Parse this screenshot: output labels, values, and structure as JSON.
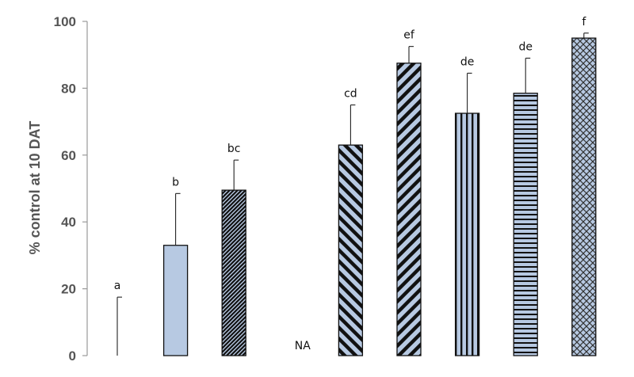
{
  "chart_data": {
    "type": "bar",
    "title": "",
    "xlabel": "",
    "ylabel": "% control at 10 DAT",
    "ylim": [
      0,
      100
    ],
    "yticks": [
      0,
      20,
      40,
      60,
      80,
      100
    ],
    "grid": false,
    "legend": "none",
    "bar_color": "#b7c9e2",
    "bars": [
      {
        "value": 0,
        "error": 17.5,
        "label": "a",
        "pattern": "none",
        "outline": false
      },
      {
        "value": 33,
        "error": 15.5,
        "label": "b",
        "pattern": "solid",
        "outline": true
      },
      {
        "value": 49.5,
        "error": 9,
        "label": "bc",
        "pattern": "dense-diagonal",
        "outline": true
      },
      {
        "value": null,
        "error": null,
        "label": "NA",
        "pattern": "none",
        "outline": false
      },
      {
        "value": 63,
        "error": 12,
        "label": "cd",
        "pattern": "wide-downward-diagonal",
        "outline": true
      },
      {
        "value": 87.5,
        "error": 5,
        "label": "ef",
        "pattern": "wide-upward-diagonal",
        "outline": true
      },
      {
        "value": 72.5,
        "error": 12,
        "label": "de",
        "pattern": "vertical-lines",
        "outline": true
      },
      {
        "value": 78.5,
        "error": 10.5,
        "label": "de",
        "pattern": "horizontal-lines",
        "outline": true
      },
      {
        "value": 95,
        "error": 1.5,
        "label": "f",
        "pattern": "crosshatch",
        "outline": true
      }
    ]
  }
}
